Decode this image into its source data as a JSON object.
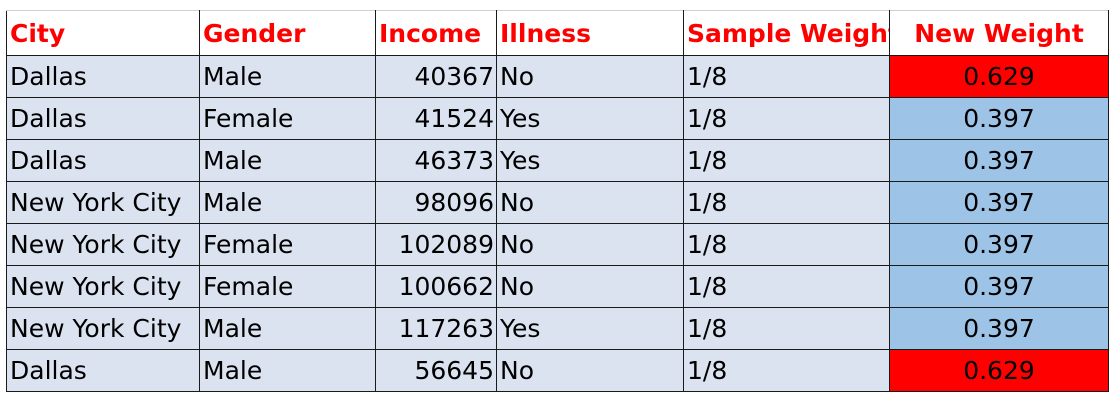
{
  "colors": {
    "header_text": "#ff0000",
    "cell_background": "#dbe3f0",
    "weight_high": "#ff0000",
    "weight_low": "#9dc3e6",
    "border": "#1a1a1a"
  },
  "table": {
    "headers": [
      "City",
      "Gender",
      "Income",
      "Illness",
      "Sample Weight",
      "New Weight"
    ],
    "rows": [
      {
        "city": "Dallas",
        "gender": "Male",
        "income": "40367",
        "illness": "No",
        "sample_weight": "1/8",
        "new_weight": "0.629",
        "weight_color": "#ff0000"
      },
      {
        "city": "Dallas",
        "gender": "Female",
        "income": "41524",
        "illness": "Yes",
        "sample_weight": "1/8",
        "new_weight": "0.397",
        "weight_color": "#9dc3e6"
      },
      {
        "city": "Dallas",
        "gender": "Male",
        "income": "46373",
        "illness": "Yes",
        "sample_weight": "1/8",
        "new_weight": "0.397",
        "weight_color": "#9dc3e6"
      },
      {
        "city": "New York City",
        "gender": "Male",
        "income": "98096",
        "illness": "No",
        "sample_weight": "1/8",
        "new_weight": "0.397",
        "weight_color": "#9dc3e6"
      },
      {
        "city": "New York City",
        "gender": "Female",
        "income": "102089",
        "illness": "No",
        "sample_weight": "1/8",
        "new_weight": "0.397",
        "weight_color": "#9dc3e6"
      },
      {
        "city": "New York City",
        "gender": "Female",
        "income": "100662",
        "illness": "No",
        "sample_weight": "1/8",
        "new_weight": "0.397",
        "weight_color": "#9dc3e6"
      },
      {
        "city": "New York City",
        "gender": "Male",
        "income": "117263",
        "illness": "Yes",
        "sample_weight": "1/8",
        "new_weight": "0.397",
        "weight_color": "#9dc3e6"
      },
      {
        "city": "Dallas",
        "gender": "Male",
        "income": "56645",
        "illness": "No",
        "sample_weight": "1/8",
        "new_weight": "0.629",
        "weight_color": "#ff0000"
      }
    ]
  }
}
